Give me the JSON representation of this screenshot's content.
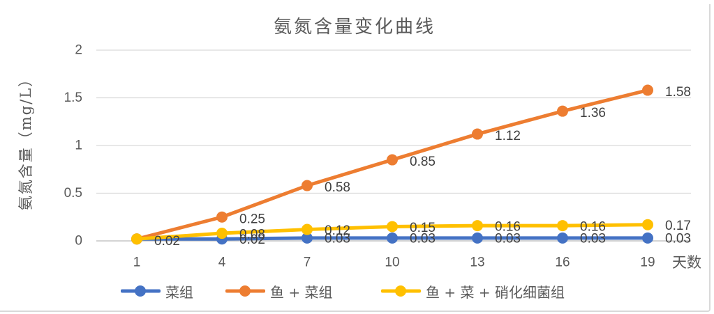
{
  "chart": {
    "title": "氨氮含量变化曲线",
    "y_axis_label": "氨氮含量（mg/L）",
    "x_axis_label": "天数"
  },
  "colors": {
    "background": "#FFFFFF",
    "frame_border": "#D9D9D9",
    "grid": "#D9D9D9",
    "zero_axis": "#C6C6C6",
    "axis_text": "#595959",
    "data_label_text": "#404040"
  },
  "chart_data": {
    "type": "line",
    "title": "氨氮含量变化曲线",
    "xlabel": "天数",
    "ylabel": "氨氮含量（mg/L）",
    "x": [
      1,
      4,
      7,
      10,
      13,
      16,
      19
    ],
    "x_tick_labels": [
      "1",
      "4",
      "7",
      "10",
      "13",
      "16",
      "19"
    ],
    "ylim": [
      0,
      2
    ],
    "y_ticks": [
      0,
      0.5,
      1,
      1.5,
      2
    ],
    "y_tick_labels": [
      "0",
      "0.5",
      "1",
      "1.5",
      "2"
    ],
    "grid": true,
    "legend_position": "bottom",
    "series": [
      {
        "name": "菜组",
        "color": "#4472C4",
        "values": [
          0.02,
          0.02,
          0.03,
          0.03,
          0.03,
          0.03,
          0.03
        ],
        "point_labels": [
          "",
          "0.02",
          "0.03",
          "0.03",
          "0.03",
          "0.03",
          "0.03"
        ]
      },
      {
        "name": "鱼 + 菜组",
        "color": "#ED7D31",
        "values": [
          0.02,
          0.25,
          0.58,
          0.85,
          1.12,
          1.36,
          1.58
        ],
        "point_labels": [
          "0.02",
          "0.25",
          "0.58",
          "0.85",
          "1.12",
          "1.36",
          "1.58"
        ]
      },
      {
        "name": "鱼 + 菜 + 硝化细菌组",
        "color": "#FFC000",
        "values": [
          0.02,
          0.08,
          0.12,
          0.15,
          0.16,
          0.16,
          0.17
        ],
        "point_labels": [
          "",
          "0.08",
          "0.12",
          "0.15",
          "0.16",
          "0.16",
          "0.17"
        ]
      }
    ]
  }
}
